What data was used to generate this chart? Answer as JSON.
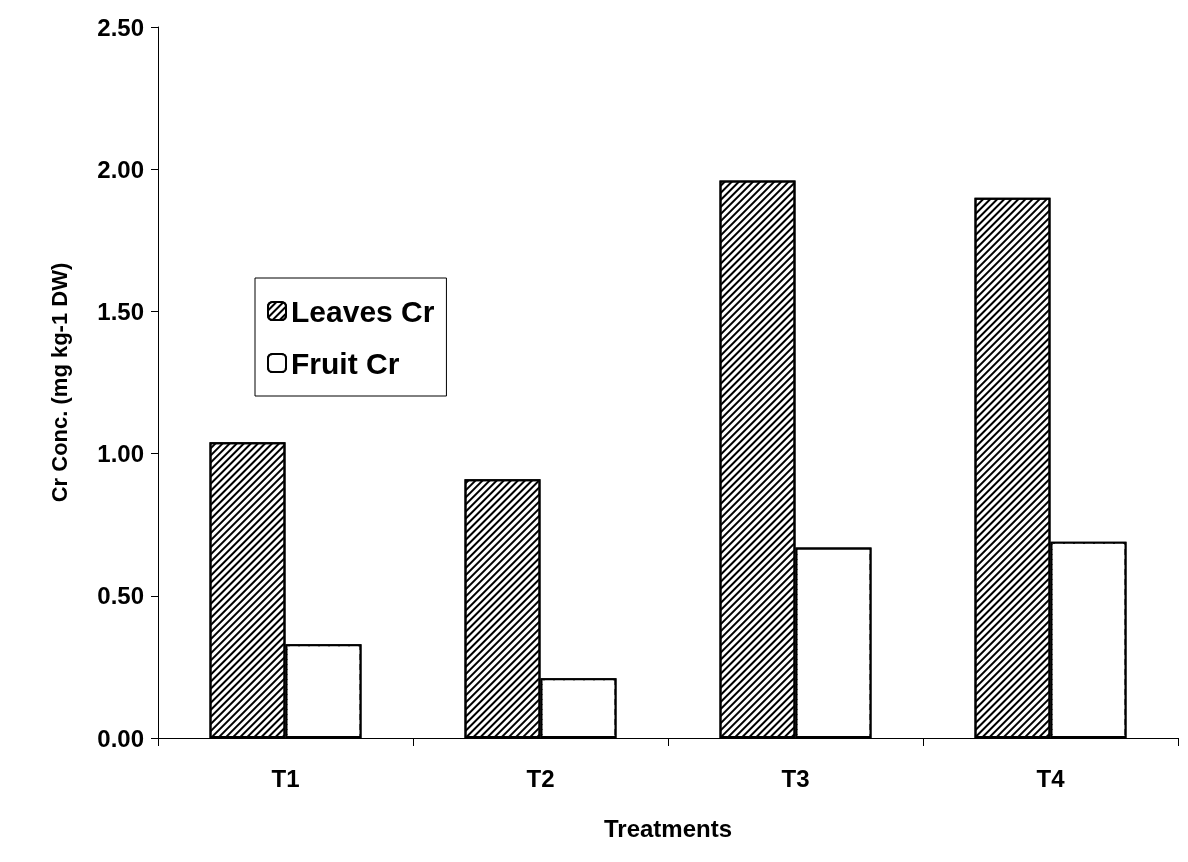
{
  "chart_data": {
    "type": "bar",
    "xlabel": "Treatments",
    "ylabel": "Cr Conc. (mg kg-1 DW)",
    "categories": [
      "T1",
      "T2",
      "T3",
      "T4"
    ],
    "series": [
      {
        "name": "Leaves Cr",
        "color": "#000000",
        "values": [
          1.04,
          0.91,
          1.96,
          1.9
        ]
      },
      {
        "name": "Fruit Cr",
        "color": "#000000",
        "values": [
          0.33,
          0.21,
          0.67,
          0.69
        ]
      }
    ],
    "ylim": [
      0,
      2.5
    ],
    "yticks": [
      {
        "value": 0,
        "label": "0.00"
      },
      {
        "value": 0.5,
        "label": "0.50"
      },
      {
        "value": 1,
        "label": "1.00"
      },
      {
        "value": 1.5,
        "label": "1.50"
      },
      {
        "value": 2,
        "label": "2.00"
      },
      {
        "value": 2.5,
        "label": "2.50"
      }
    ],
    "grid": false,
    "legend": "left"
  }
}
